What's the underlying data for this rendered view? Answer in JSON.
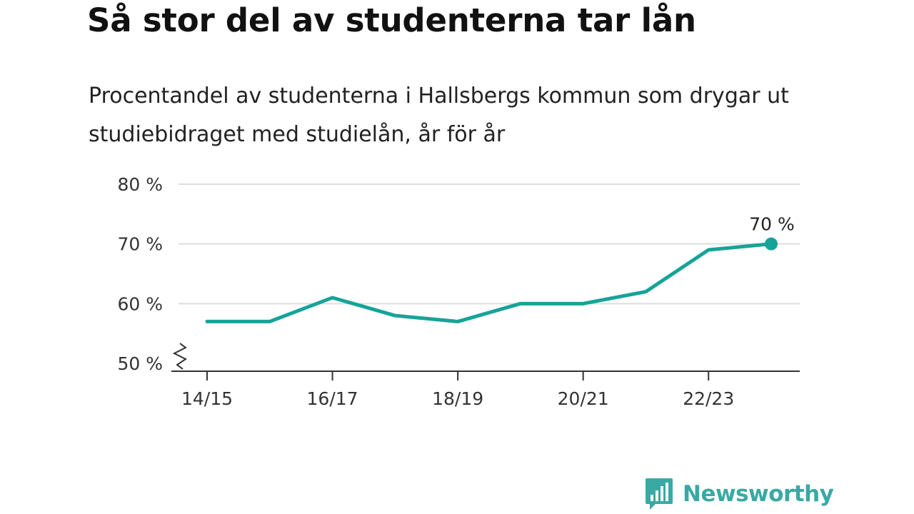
{
  "header": {
    "title": "Så stor del av studenterna tar lån",
    "subtitle": "Procentandel av studenterna i Hallsbergs kommun som drygar ut studiebidraget med studielån, år för år"
  },
  "chart_data": {
    "type": "line",
    "title": "Så stor del av studenterna tar lån",
    "subtitle": "Procentandel av studenterna i Hallsbergs kommun som drygar ut studiebidraget med studielån, år för år",
    "xlabel": "",
    "ylabel": "",
    "categories": [
      "14/15",
      "15/16",
      "16/17",
      "17/18",
      "18/19",
      "19/20",
      "20/21",
      "21/22",
      "22/23",
      "23/24"
    ],
    "x_tick_labels": [
      "14/15",
      "16/17",
      "18/19",
      "20/21",
      "22/23"
    ],
    "values": [
      57,
      57,
      61,
      58,
      57,
      60,
      60,
      62,
      69,
      70
    ],
    "y_ticks": [
      50,
      60,
      70,
      80
    ],
    "y_tick_labels": [
      "50 %",
      "60 %",
      "70 %",
      "80 %"
    ],
    "ylim": [
      50,
      80
    ],
    "y_axis_break": true,
    "grid": true,
    "last_point_label": "70 %",
    "line_color": "#17a398",
    "grid_color": "#dddddd",
    "axis_color": "#333333"
  },
  "brand": {
    "name": "Newsworthy",
    "color": "#3aa9a4",
    "icon": "bar-chart-speech-bubble-icon"
  }
}
